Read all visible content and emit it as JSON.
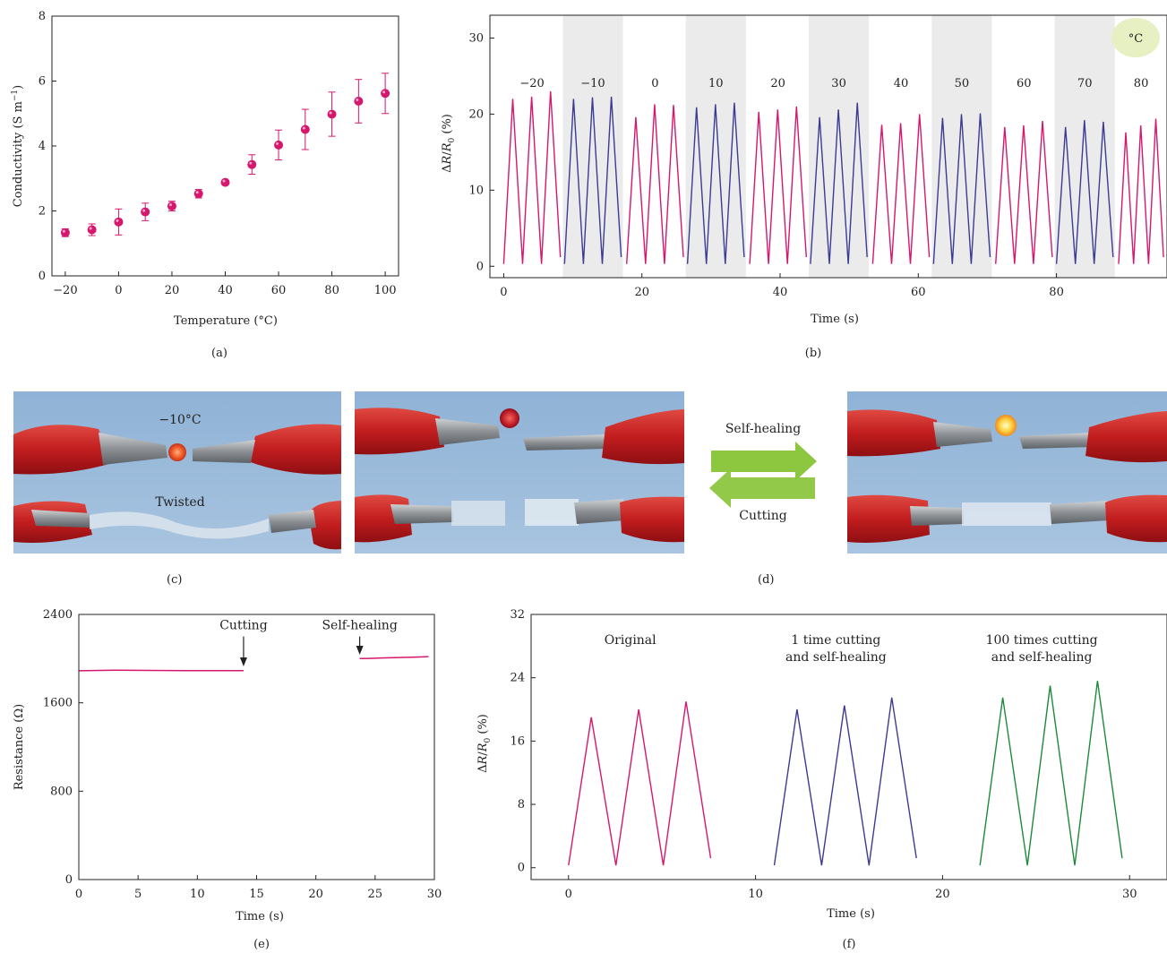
{
  "colors": {
    "pink": "#d6176e",
    "blue": "#3d3a92",
    "green": "#1c8a3a",
    "band": "#ebebeb",
    "badge": "#e6f0c2",
    "arrow": "#8dc63f"
  },
  "chart_data": [
    {
      "id": "a",
      "type": "scatter",
      "panel_label": "(a)",
      "xlabel": "Temperature (°C)",
      "ylabel": "Conductivity (S m",
      "ylabel_sup": "−1",
      "ylabel_close": ")",
      "xlim": [
        -25,
        105
      ],
      "ylim": [
        0,
        8
      ],
      "xticks": [
        -20,
        0,
        20,
        40,
        60,
        80,
        100
      ],
      "xtick_labels": [
        "−20",
        "0",
        "20",
        "40",
        "60",
        "80",
        "100"
      ],
      "yticks": [
        0,
        2,
        4,
        6,
        8
      ],
      "points": [
        {
          "x": -20,
          "y": 1.33,
          "err": 0.12
        },
        {
          "x": -10,
          "y": 1.42,
          "err": 0.18
        },
        {
          "x": 0,
          "y": 1.66,
          "err": 0.4
        },
        {
          "x": 10,
          "y": 1.97,
          "err": 0.27
        },
        {
          "x": 20,
          "y": 2.15,
          "err": 0.15
        },
        {
          "x": 30,
          "y": 2.53,
          "err": 0.13
        },
        {
          "x": 40,
          "y": 2.88,
          "err": 0.05
        },
        {
          "x": 50,
          "y": 3.43,
          "err": 0.3
        },
        {
          "x": 60,
          "y": 4.03,
          "err": 0.46
        },
        {
          "x": 70,
          "y": 4.51,
          "err": 0.62
        },
        {
          "x": 80,
          "y": 4.98,
          "err": 0.68
        },
        {
          "x": 90,
          "y": 5.38,
          "err": 0.67
        },
        {
          "x": 100,
          "y": 5.62,
          "err": 0.62
        }
      ]
    },
    {
      "id": "b",
      "type": "line",
      "panel_label": "(b)",
      "xlabel": "Time (s)",
      "ylabel": "ΔR/R0 (%)",
      "xlim": [
        -2,
        96
      ],
      "ylim": [
        -1.5,
        33
      ],
      "xticks": [
        0,
        20,
        40,
        60,
        80
      ],
      "yticks": [
        0,
        10,
        20,
        30
      ],
      "unit_badge": "°C",
      "segments": [
        {
          "temp": "−20",
          "start": 0.0,
          "end": 8.2,
          "shaded": false,
          "peaks": [
            22.0,
            22.3,
            23.0
          ]
        },
        {
          "temp": "−10",
          "start": 8.8,
          "end": 17.0,
          "shaded": true,
          "peaks": [
            22.0,
            22.2,
            22.3
          ]
        },
        {
          "temp": "0",
          "start": 17.8,
          "end": 26.0,
          "shaded": false,
          "peaks": [
            19.6,
            21.3,
            21.2
          ]
        },
        {
          "temp": "10",
          "start": 26.6,
          "end": 34.8,
          "shaded": true,
          "peaks": [
            20.9,
            21.3,
            21.5
          ]
        },
        {
          "temp": "20",
          "start": 35.6,
          "end": 43.8,
          "shaded": false,
          "peaks": [
            20.3,
            20.6,
            21.0
          ]
        },
        {
          "temp": "30",
          "start": 44.4,
          "end": 52.6,
          "shaded": true,
          "peaks": [
            19.6,
            20.6,
            21.5
          ]
        },
        {
          "temp": "40",
          "start": 53.4,
          "end": 61.6,
          "shaded": false,
          "peaks": [
            18.6,
            18.8,
            20.0
          ]
        },
        {
          "temp": "50",
          "start": 62.2,
          "end": 70.4,
          "shaded": true,
          "peaks": [
            19.5,
            20.0,
            20.1
          ]
        },
        {
          "temp": "60",
          "start": 71.2,
          "end": 79.4,
          "shaded": false,
          "peaks": [
            18.3,
            18.5,
            19.1
          ]
        },
        {
          "temp": "70",
          "start": 80.0,
          "end": 88.2,
          "shaded": true,
          "peaks": [
            18.3,
            19.2,
            19.0
          ]
        },
        {
          "temp": "80",
          "start": 89.0,
          "end": 95.5,
          "shaded": false,
          "peaks": [
            17.6,
            18.5,
            19.4
          ]
        }
      ]
    },
    {
      "id": "e",
      "type": "line",
      "panel_label": "(e)",
      "xlabel": "Time (s)",
      "ylabel": "Resistance (Ω)",
      "xlim": [
        0,
        30
      ],
      "ylim": [
        0,
        2400
      ],
      "xticks": [
        0,
        5,
        10,
        15,
        20,
        25,
        30
      ],
      "yticks": [
        0,
        800,
        1600,
        2400
      ],
      "segments": [
        {
          "x": [
            0,
            3,
            6,
            9,
            12,
            13.9
          ],
          "y": [
            1890,
            1895,
            1893,
            1892,
            1892,
            1891
          ]
        },
        {
          "x": [
            23.7,
            24.5,
            25.5,
            27,
            28.5,
            29.5
          ],
          "y": [
            2000,
            2002,
            2006,
            2010,
            2014,
            2018
          ]
        }
      ],
      "annotations": [
        {
          "text": "Cutting",
          "x": 13.9,
          "arrow_top": 2200,
          "arrow_bottom": 1930
        },
        {
          "text": "Self-healing",
          "x": 23.7,
          "arrow_top": 2200,
          "arrow_bottom": 2035
        }
      ]
    },
    {
      "id": "f",
      "type": "line",
      "panel_label": "(f)",
      "xlabel": "Time (s)",
      "ylabel": "ΔR/R0 (%)",
      "xlim": [
        -2,
        32
      ],
      "ylim": [
        -1.5,
        32
      ],
      "xticks": [
        0,
        10,
        20,
        30
      ],
      "yticks": [
        0,
        8,
        16,
        24,
        32
      ],
      "series": [
        {
          "name": "Original",
          "name2": "",
          "label_x": 3.3,
          "color_key": "pink",
          "start": 0.0,
          "end": 7.6,
          "peaks": [
            19.0,
            20.0,
            21.0
          ]
        },
        {
          "name": "1 time cutting",
          "name2": "and self-healing",
          "label_x": 14.3,
          "color_key": "blue",
          "start": 11.0,
          "end": 18.6,
          "peaks": [
            20.0,
            20.5,
            21.5
          ]
        },
        {
          "name": "100 times cutting",
          "name2": "and self-healing",
          "label_x": 25.3,
          "color_key": "green",
          "start": 22.0,
          "end": 29.6,
          "peaks": [
            21.5,
            23.0,
            23.6
          ]
        }
      ]
    }
  ],
  "photos": {
    "c": {
      "label": "(c)",
      "temp_text": "−10°C",
      "twist_text": "Twisted"
    },
    "d": {
      "label": "(d)",
      "healing_text": "Self-healing",
      "cutting_text": "Cutting"
    }
  }
}
